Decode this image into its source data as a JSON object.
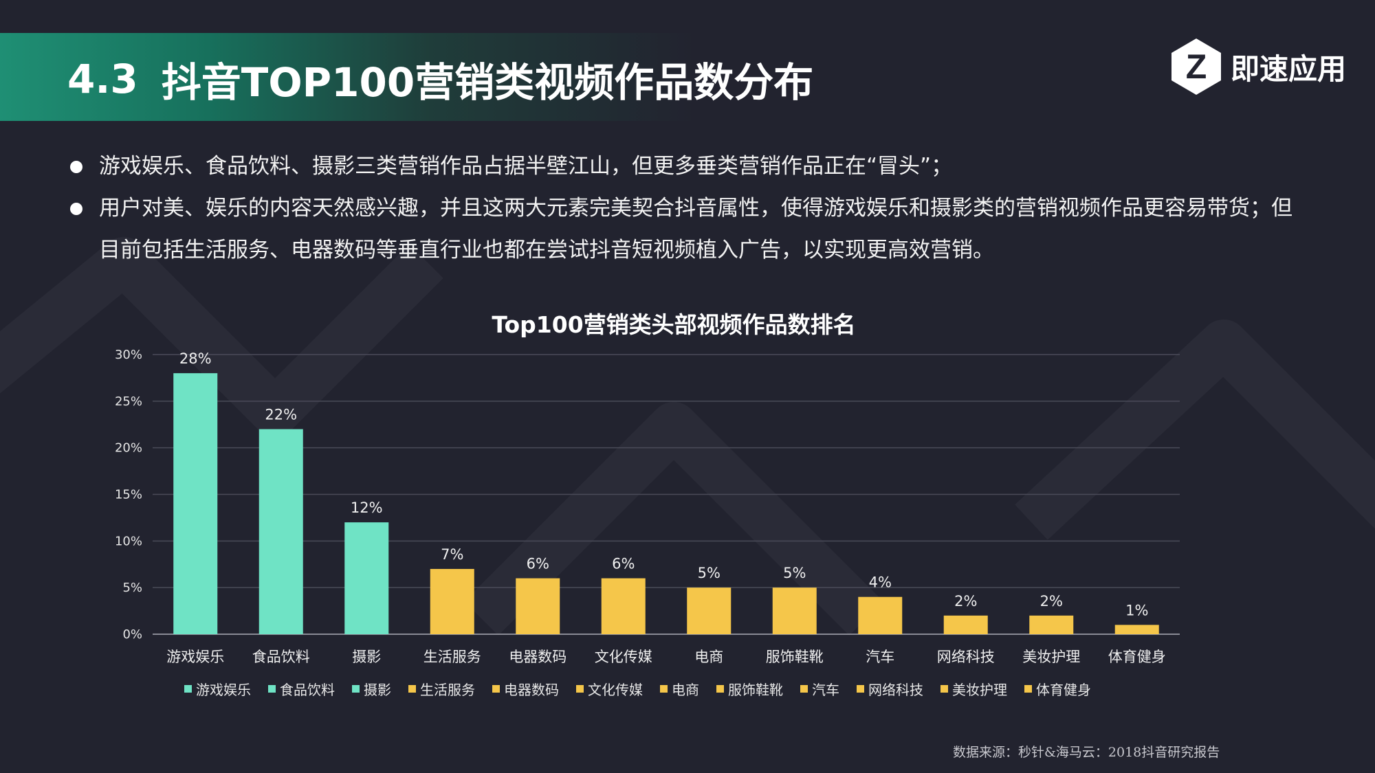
{
  "header": {
    "section_number": "4.3",
    "title": "抖音TOP100营销类视频作品数分布"
  },
  "brand": {
    "name": "即速应用",
    "logo_letter": "Z"
  },
  "bullets": [
    "游戏娱乐、食品饮料、摄影三类营销作品占据半壁江山，但更多垂类营销作品正在“冒头”；",
    "用户对美、娱乐的内容天然感兴趣，并且这两大元素完美契合抖音属性，使得游戏娱乐和摄影类的营销视频作品更容易带货；但目前包括生活服务、电器数码等垂直行业也都在尝试抖音短视频植入广告，以实现更高效营销。"
  ],
  "colors": {
    "teal": "#6fe3c5",
    "yellow": "#f5c64a",
    "grid": "#4a4b58",
    "axis": "#8a8b95"
  },
  "chart_data": {
    "type": "bar",
    "title": "Top100营销类头部视频作品数排名",
    "categories": [
      "游戏娱乐",
      "食品饮料",
      "摄影",
      "生活服务",
      "电器数码",
      "文化传媒",
      "电商",
      "服饰鞋靴",
      "汽车",
      "网络科技",
      "美妆护理",
      "体育健身"
    ],
    "values": [
      28,
      22,
      12,
      7,
      6,
      6,
      5,
      5,
      4,
      2,
      2,
      1
    ],
    "data_labels": [
      "28%",
      "22%",
      "12%",
      "7%",
      "6%",
      "6%",
      "5%",
      "5%",
      "4%",
      "2%",
      "2%",
      "1%"
    ],
    "bar_color_keys": [
      "teal",
      "teal",
      "teal",
      "yellow",
      "yellow",
      "yellow",
      "yellow",
      "yellow",
      "yellow",
      "yellow",
      "yellow",
      "yellow"
    ],
    "ylim": [
      0,
      30
    ],
    "yticks": [
      0,
      5,
      10,
      15,
      20,
      25,
      30
    ],
    "ytick_labels": [
      "0%",
      "5%",
      "10%",
      "15%",
      "20%",
      "25%",
      "30%"
    ],
    "xlabel": "",
    "ylabel": "",
    "grid": true,
    "legend_position": "bottom"
  },
  "source_note": "数据来源：秒针&海马云：2018抖音研究报告"
}
